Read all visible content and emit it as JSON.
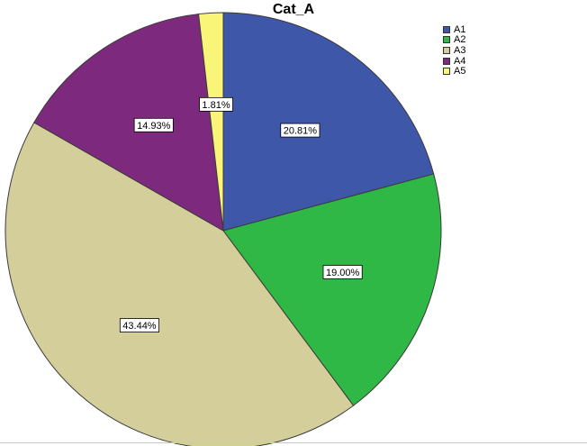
{
  "chart_data": {
    "type": "pie",
    "title": "Cat_A",
    "legend_position": "top-right",
    "start_angle_deg": 0,
    "direction": "clockwise",
    "slices": [
      {
        "name": "A1",
        "value": 20.81,
        "label": "20.81%",
        "color": "#3f57a8"
      },
      {
        "name": "A2",
        "value": 19.0,
        "label": "19.00%",
        "color": "#2fb845"
      },
      {
        "name": "A3",
        "value": 43.44,
        "label": "43.44%",
        "color": "#d4cf9a"
      },
      {
        "name": "A4",
        "value": 14.93,
        "label": "14.93%",
        "color": "#7d2a7e"
      },
      {
        "name": "A5",
        "value": 1.81,
        "label": "1.81%",
        "color": "#f8f578"
      }
    ]
  }
}
